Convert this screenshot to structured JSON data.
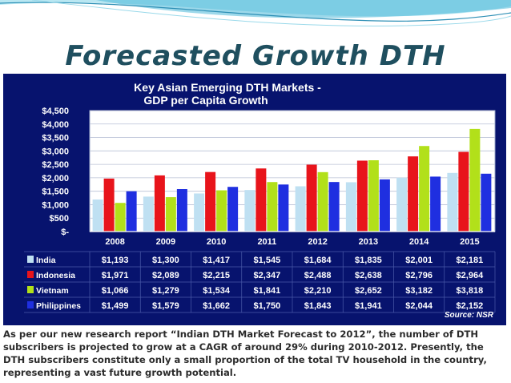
{
  "slide": {
    "title": "Forecasted Growth DTH",
    "body": "As per our new research report “Indian DTH Market Forecast to 2012”, the number of DTH subscribers is projected to grow at a CAGR of around 29% during 2010-2012. Presently, the DTH subscribers constitute only a small proportion of the total TV household in the country, representing a vast future growth potential."
  },
  "colors": {
    "panel_bg": "#07136e",
    "plot_bg": "#ffffff",
    "India": "#bfe0f2",
    "Indonesia": "#e8141b",
    "Vietnam": "#b2e01a",
    "Philippines": "#1f2fe0",
    "title_text": "#ffffff",
    "axis_text": "#ffffff"
  },
  "chart_data": {
    "type": "bar",
    "title": "Key Asian Emerging DTH Markets -",
    "subtitle": "GDP per Capita Growth",
    "categories": [
      "2008",
      "2009",
      "2010",
      "2011",
      "2012",
      "2013",
      "2014",
      "2015"
    ],
    "series": [
      {
        "name": "India",
        "values": [
          1193,
          1300,
          1417,
          1545,
          1684,
          1835,
          2001,
          2181
        ],
        "labels": [
          "$1,193",
          "$1,300",
          "$1,417",
          "$1,545",
          "$1,684",
          "$1,835",
          "$2,001",
          "$2,181"
        ]
      },
      {
        "name": "Indonesia",
        "values": [
          1971,
          2089,
          2215,
          2347,
          2488,
          2638,
          2796,
          2964
        ],
        "labels": [
          "$1,971",
          "$2,089",
          "$2,215",
          "$2,347",
          "$2,488",
          "$2,638",
          "$2,796",
          "$2,964"
        ]
      },
      {
        "name": "Vietnam",
        "values": [
          1066,
          1279,
          1534,
          1841,
          2210,
          2652,
          3182,
          3818
        ],
        "labels": [
          "$1,066",
          "$1,279",
          "$1,534",
          "$1,841",
          "$2,210",
          "$2,652",
          "$3,182",
          "$3,818"
        ]
      },
      {
        "name": "Philippines",
        "values": [
          1499,
          1579,
          1662,
          1750,
          1843,
          1941,
          2044,
          2152
        ],
        "labels": [
          "$1,499",
          "$1,579",
          "$1,662",
          "$1,750",
          "$1,843",
          "$1,941",
          "$2,044",
          "$2,152"
        ]
      }
    ],
    "yticks": [
      "$4,500",
      "$4,000",
      "$3,500",
      "$3,000",
      "$2,500",
      "$2,000",
      "$1,500",
      "$1,000",
      "$500",
      "$-"
    ],
    "ylim": [
      0,
      4500
    ],
    "grid": true,
    "legend": "table-below",
    "source": "Source: NSR"
  }
}
